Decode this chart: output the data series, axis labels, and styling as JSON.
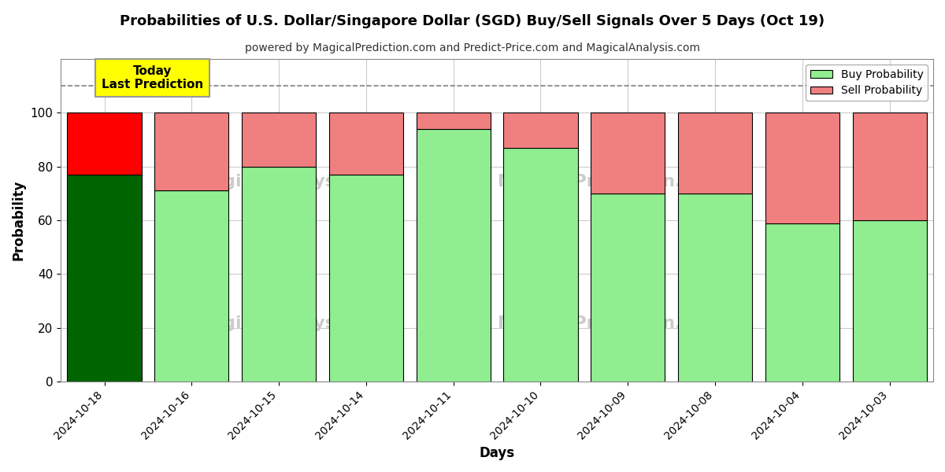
{
  "title": "Probabilities of U.S. Dollar/Singapore Dollar (SGD) Buy/Sell Signals Over 5 Days (Oct 19)",
  "subtitle": "powered by MagicalPrediction.com and Predict-Price.com and MagicalAnalysis.com",
  "xlabel": "Days",
  "ylabel": "Probability",
  "dates": [
    "2024-10-18",
    "2024-10-16",
    "2024-10-15",
    "2024-10-14",
    "2024-10-11",
    "2024-10-10",
    "2024-10-09",
    "2024-10-08",
    "2024-10-04",
    "2024-10-03"
  ],
  "buy_values": [
    77,
    71,
    80,
    77,
    94,
    87,
    70,
    70,
    59,
    60
  ],
  "sell_values": [
    23,
    29,
    20,
    23,
    6,
    13,
    30,
    30,
    41,
    40
  ],
  "buy_color_first": "#006400",
  "buy_color_rest": "#90EE90",
  "sell_color_first": "#FF0000",
  "sell_color_rest": "#F08080",
  "bar_edge_color": "#000000",
  "ylim_max": 120,
  "yticks": [
    0,
    20,
    40,
    60,
    80,
    100
  ],
  "dashed_line_y": 110,
  "legend_buy_color": "#90EE90",
  "legend_sell_color": "#F08080",
  "watermark_color": "#cccccc",
  "annotation_text": "Today\nLast Prediction",
  "annotation_bg": "#FFFF00",
  "grid_color": "#cccccc",
  "bar_width": 0.85
}
